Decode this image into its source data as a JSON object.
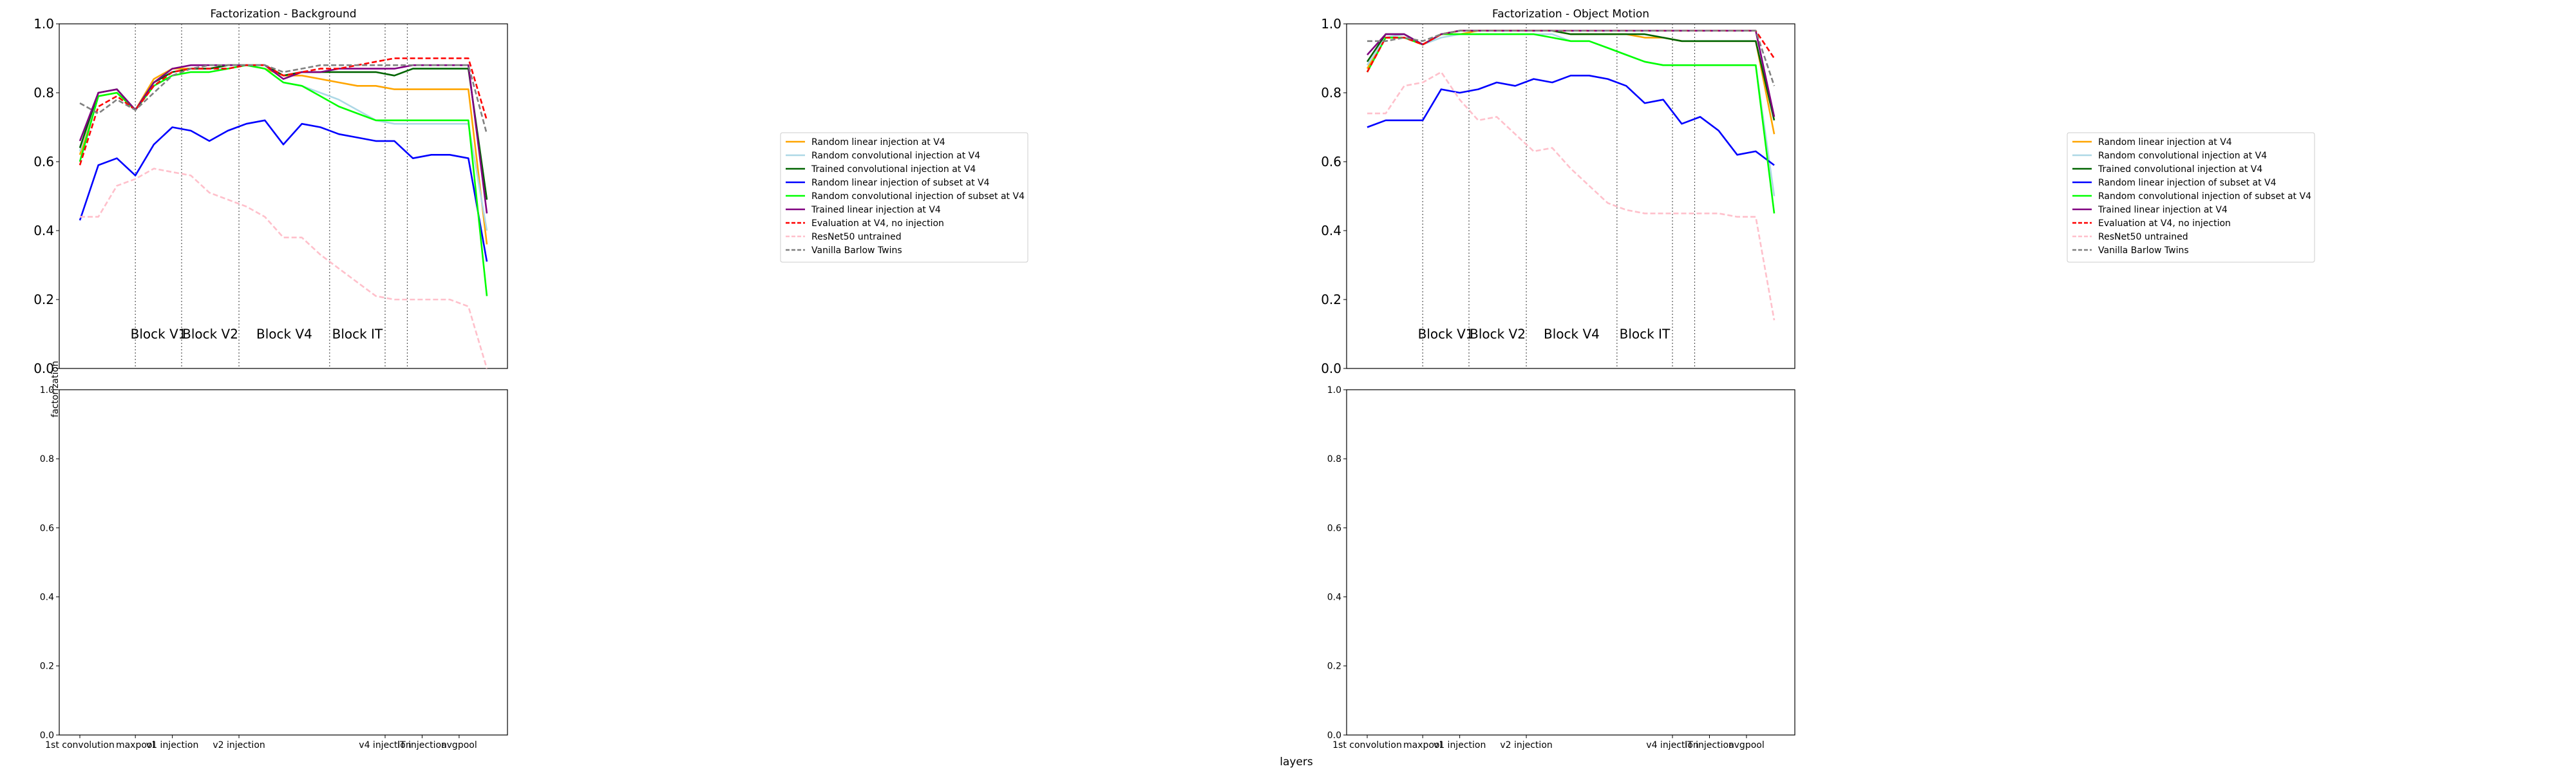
{
  "figure": {
    "ylabel": "factorization",
    "xlabel": "layers"
  },
  "legend_entries": [
    {
      "label": "Random linear injection at V4",
      "color": "#ffa500",
      "dash": "solid"
    },
    {
      "label": "Random convolutional injection at V4",
      "color": "#add8e6",
      "dash": "solid"
    },
    {
      "label": "Trained convolutional injection at V4",
      "color": "#006400",
      "dash": "solid"
    },
    {
      "label": "Random linear injection of subset at V4",
      "color": "#0000ff",
      "dash": "solid"
    },
    {
      "label": "Random convolutional injection of subset at V4",
      "color": "#00ff00",
      "dash": "solid"
    },
    {
      "label": "Trained linear injection at V4",
      "color": "#800080",
      "dash": "solid"
    },
    {
      "label": "Evaluation at V4, no injection",
      "color": "#ff0000",
      "dash": "dashed"
    },
    {
      "label": "ResNet50 untrained",
      "color": "#ffc0cb",
      "dash": "dashed"
    },
    {
      "label": "Vanilla Barlow Twins",
      "color": "#808080",
      "dash": "dashed"
    }
  ],
  "chart_data": [
    {
      "type": "line",
      "title": "Factorization - Background",
      "ylim": [
        0,
        1
      ],
      "yticks": [
        "0.0",
        "0.2",
        "0.4",
        "0.6",
        "0.8",
        "1.0"
      ],
      "legend": "right-outside",
      "blocks": [
        "Block V1",
        "Block V2",
        "Block V4",
        "Block IT"
      ],
      "x_count": 23,
      "series": [
        {
          "name": "Random linear injection at V4",
          "color": "#ffa500",
          "dash": "solid",
          "values": [
            0.62,
            0.79,
            0.8,
            0.75,
            0.84,
            0.87,
            0.87,
            0.87,
            0.88,
            0.88,
            0.87,
            0.85,
            0.85,
            0.84,
            0.83,
            0.82,
            0.82,
            0.81,
            0.81,
            0.81,
            0.81,
            0.81,
            0.36
          ]
        },
        {
          "name": "Random convolutional injection at V4",
          "color": "#add8e6",
          "dash": "solid",
          "values": [
            0.63,
            0.8,
            0.81,
            0.75,
            0.83,
            0.86,
            0.87,
            0.87,
            0.87,
            0.88,
            0.87,
            0.83,
            0.82,
            0.8,
            0.78,
            0.75,
            0.72,
            0.71,
            0.71,
            0.71,
            0.71,
            0.71,
            0.4
          ]
        },
        {
          "name": "Trained convolutional injection at V4",
          "color": "#006400",
          "dash": "solid",
          "values": [
            0.64,
            0.8,
            0.81,
            0.75,
            0.83,
            0.86,
            0.87,
            0.87,
            0.88,
            0.88,
            0.88,
            0.85,
            0.86,
            0.86,
            0.86,
            0.86,
            0.86,
            0.85,
            0.87,
            0.87,
            0.87,
            0.87,
            0.49
          ]
        },
        {
          "name": "Random linear injection of subset at V4",
          "color": "#0000ff",
          "dash": "solid",
          "values": [
            0.43,
            0.59,
            0.61,
            0.56,
            0.65,
            0.7,
            0.69,
            0.66,
            0.69,
            0.71,
            0.72,
            0.65,
            0.71,
            0.7,
            0.68,
            0.67,
            0.66,
            0.66,
            0.61,
            0.62,
            0.62,
            0.61,
            0.31
          ]
        },
        {
          "name": "Random convolutional injection of subset at V4",
          "color": "#00ff00",
          "dash": "solid",
          "values": [
            0.6,
            0.79,
            0.8,
            0.75,
            0.82,
            0.85,
            0.86,
            0.86,
            0.87,
            0.88,
            0.87,
            0.83,
            0.82,
            0.79,
            0.76,
            0.74,
            0.72,
            0.72,
            0.72,
            0.72,
            0.72,
            0.72,
            0.21
          ]
        },
        {
          "name": "Trained linear injection at V4",
          "color": "#800080",
          "dash": "solid",
          "values": [
            0.66,
            0.8,
            0.81,
            0.75,
            0.83,
            0.87,
            0.88,
            0.88,
            0.88,
            0.88,
            0.88,
            0.84,
            0.86,
            0.86,
            0.87,
            0.87,
            0.87,
            0.87,
            0.88,
            0.88,
            0.88,
            0.88,
            0.45
          ]
        },
        {
          "name": "Evaluation at V4, no injection",
          "color": "#ff0000",
          "dash": "dashed",
          "values": [
            0.59,
            0.76,
            0.79,
            0.75,
            0.82,
            0.86,
            0.87,
            0.87,
            0.87,
            0.88,
            0.88,
            0.85,
            0.86,
            0.87,
            0.87,
            0.88,
            0.89,
            0.9,
            0.9,
            0.9,
            0.9,
            0.9,
            0.72
          ]
        },
        {
          "name": "ResNet50 untrained",
          "color": "#ffc0cb",
          "dash": "dashed",
          "values": [
            0.44,
            0.44,
            0.53,
            0.55,
            0.58,
            0.57,
            0.56,
            0.51,
            0.49,
            0.47,
            0.44,
            0.38,
            0.38,
            0.33,
            0.29,
            0.25,
            0.21,
            0.2,
            0.2,
            0.2,
            0.2,
            0.18,
            0.0
          ]
        },
        {
          "name": "Vanilla Barlow Twins",
          "color": "#808080",
          "dash": "dashed",
          "values": [
            0.77,
            0.74,
            0.78,
            0.75,
            0.8,
            0.85,
            0.87,
            0.88,
            0.88,
            0.88,
            0.88,
            0.86,
            0.87,
            0.88,
            0.88,
            0.88,
            0.88,
            0.88,
            0.88,
            0.88,
            0.88,
            0.88,
            0.68
          ]
        }
      ]
    },
    {
      "type": "line",
      "title": "Factorization - Object Motion",
      "ylim": [
        0,
        1
      ],
      "yticks": [
        "0.0",
        "0.2",
        "0.4",
        "0.6",
        "0.8",
        "1.0"
      ],
      "legend": "right-outside",
      "blocks": [
        "Block V1",
        "Block V2",
        "Block V4",
        "Block IT"
      ],
      "x_count": 23,
      "series": [
        {
          "name": "Random linear injection at V4",
          "color": "#ffa500",
          "dash": "solid",
          "values": [
            0.87,
            0.96,
            0.96,
            0.94,
            0.97,
            0.97,
            0.98,
            0.98,
            0.98,
            0.98,
            0.98,
            0.97,
            0.97,
            0.97,
            0.97,
            0.96,
            0.96,
            0.95,
            0.95,
            0.95,
            0.95,
            0.95,
            0.68
          ]
        },
        {
          "name": "Random convolutional injection at V4",
          "color": "#add8e6",
          "dash": "solid",
          "values": [
            0.88,
            0.96,
            0.97,
            0.94,
            0.96,
            0.97,
            0.97,
            0.97,
            0.97,
            0.97,
            0.97,
            0.95,
            0.95,
            0.93,
            0.91,
            0.89,
            0.88,
            0.88,
            0.88,
            0.88,
            0.88,
            0.88,
            0.5
          ]
        },
        {
          "name": "Trained convolutional injection at V4",
          "color": "#006400",
          "dash": "solid",
          "values": [
            0.89,
            0.97,
            0.97,
            0.94,
            0.97,
            0.98,
            0.98,
            0.98,
            0.98,
            0.98,
            0.98,
            0.97,
            0.97,
            0.97,
            0.97,
            0.97,
            0.96,
            0.95,
            0.95,
            0.95,
            0.95,
            0.95,
            0.72
          ]
        },
        {
          "name": "Random linear injection of subset at V4",
          "color": "#0000ff",
          "dash": "solid",
          "values": [
            0.7,
            0.72,
            0.72,
            0.72,
            0.81,
            0.8,
            0.81,
            0.83,
            0.82,
            0.84,
            0.83,
            0.85,
            0.85,
            0.84,
            0.82,
            0.77,
            0.78,
            0.71,
            0.73,
            0.69,
            0.62,
            0.63,
            0.59
          ]
        },
        {
          "name": "Random convolutional injection of subset at V4",
          "color": "#00ff00",
          "dash": "solid",
          "values": [
            0.86,
            0.96,
            0.96,
            0.94,
            0.97,
            0.97,
            0.97,
            0.97,
            0.97,
            0.97,
            0.96,
            0.95,
            0.95,
            0.93,
            0.91,
            0.89,
            0.88,
            0.88,
            0.88,
            0.88,
            0.88,
            0.88,
            0.45
          ]
        },
        {
          "name": "Trained linear injection at V4",
          "color": "#800080",
          "dash": "solid",
          "values": [
            0.91,
            0.97,
            0.97,
            0.94,
            0.97,
            0.98,
            0.98,
            0.98,
            0.98,
            0.98,
            0.98,
            0.98,
            0.98,
            0.98,
            0.98,
            0.98,
            0.98,
            0.98,
            0.98,
            0.98,
            0.98,
            0.98,
            0.73
          ]
        },
        {
          "name": "Evaluation at V4, no injection",
          "color": "#ff0000",
          "dash": "dashed",
          "values": [
            0.86,
            0.96,
            0.96,
            0.94,
            0.97,
            0.98,
            0.98,
            0.98,
            0.98,
            0.98,
            0.98,
            0.98,
            0.98,
            0.98,
            0.98,
            0.98,
            0.98,
            0.98,
            0.98,
            0.98,
            0.98,
            0.98,
            0.9
          ]
        },
        {
          "name": "ResNet50 untrained",
          "color": "#ffc0cb",
          "dash": "dashed",
          "values": [
            0.74,
            0.74,
            0.82,
            0.83,
            0.86,
            0.78,
            0.72,
            0.73,
            0.68,
            0.63,
            0.64,
            0.58,
            0.53,
            0.48,
            0.46,
            0.45,
            0.45,
            0.45,
            0.45,
            0.45,
            0.44,
            0.44,
            0.14
          ]
        },
        {
          "name": "Vanilla Barlow Twins",
          "color": "#808080",
          "dash": "dashed",
          "values": [
            0.95,
            0.95,
            0.96,
            0.95,
            0.97,
            0.98,
            0.98,
            0.98,
            0.98,
            0.98,
            0.98,
            0.98,
            0.98,
            0.98,
            0.98,
            0.98,
            0.98,
            0.98,
            0.98,
            0.98,
            0.98,
            0.98,
            0.82
          ]
        }
      ]
    },
    {
      "type": "line",
      "title": "",
      "ylim": [
        0,
        1
      ],
      "yticks": [
        "0.0",
        "0.2",
        "0.4",
        "0.6",
        "0.8",
        "1.0"
      ],
      "xticklabels": [
        "1st convolution",
        "maxpool",
        "v1 injection",
        "v2 injection",
        "v4 injection",
        "IT injection",
        "avgpool"
      ],
      "series": []
    },
    {
      "type": "line",
      "title": "",
      "ylim": [
        0,
        1
      ],
      "yticks": [
        "0.0",
        "0.2",
        "0.4",
        "0.6",
        "0.8",
        "1.0"
      ],
      "xticklabels": [
        "1st convolution",
        "maxpool",
        "v1 injection",
        "v2 injection",
        "v4 injection",
        "IT injection",
        "avgpool"
      ],
      "series": []
    }
  ]
}
